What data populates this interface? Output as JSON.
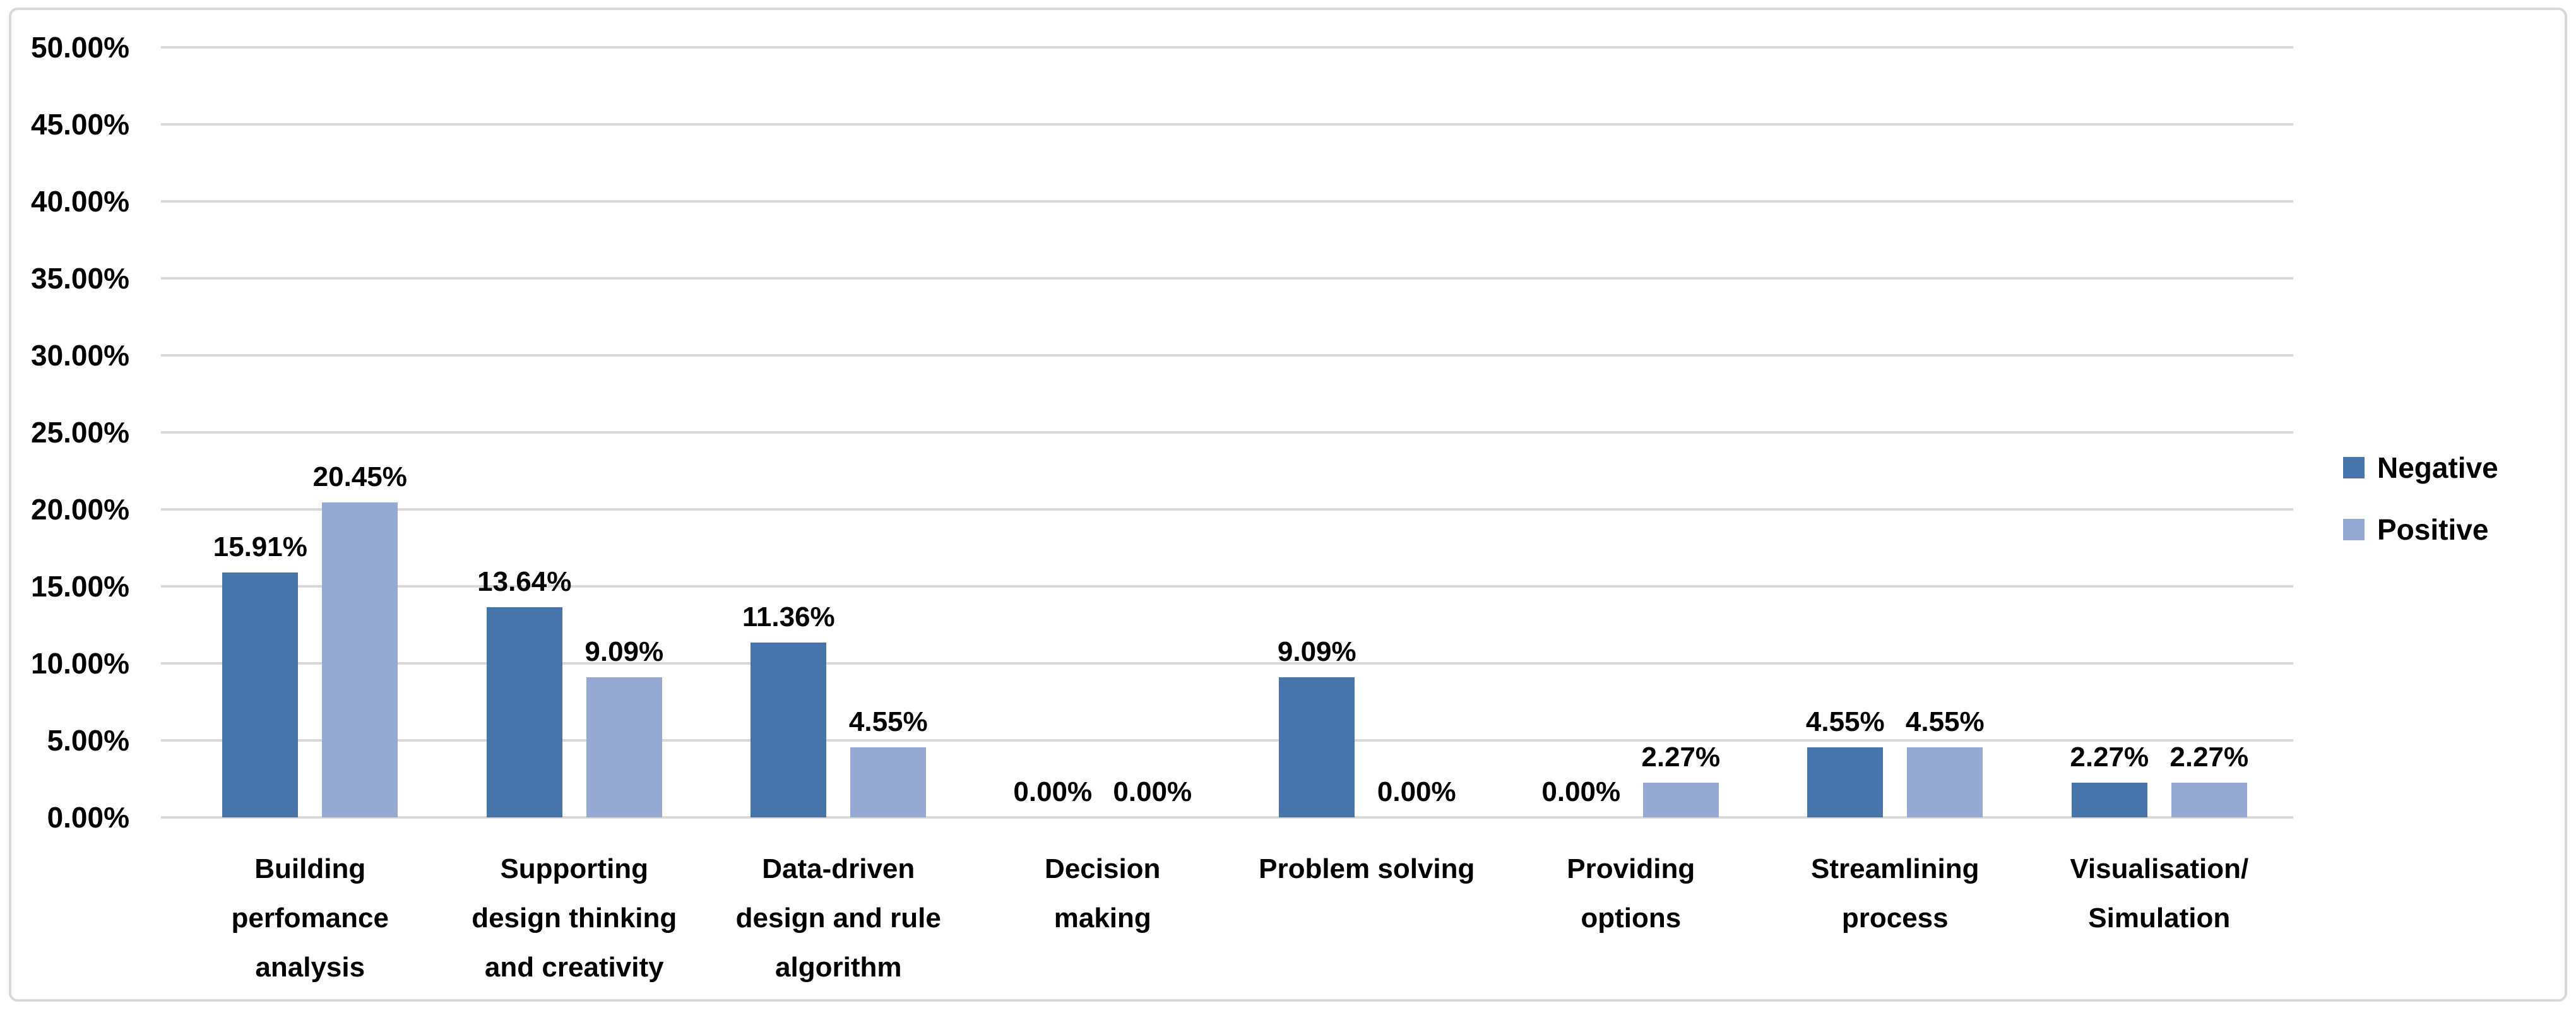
{
  "chart_data": {
    "type": "bar",
    "title": "",
    "xlabel": "",
    "ylabel": "",
    "categories": [
      [
        "Building",
        "perfomance",
        "analysis"
      ],
      [
        "Supporting",
        "design thinking",
        "and creativity"
      ],
      [
        "Data-driven",
        "design and rule",
        "algorithm"
      ],
      [
        "Decision",
        "making"
      ],
      [
        "Problem solving"
      ],
      [
        "Providing",
        "options"
      ],
      [
        "Streamlining",
        "process"
      ],
      [
        "Visualisation/",
        "Simulation"
      ]
    ],
    "series": [
      {
        "name": "Negative",
        "color": "#4674AB",
        "values": [
          15.91,
          13.64,
          11.36,
          0.0,
          9.09,
          0.0,
          4.55,
          2.27
        ],
        "labels": [
          "15.91%",
          "13.64%",
          "11.36%",
          "0.00%",
          "9.09%",
          "0.00%",
          "4.55%",
          "2.27%"
        ]
      },
      {
        "name": "Positive",
        "color": "#95A9D3",
        "values": [
          20.45,
          9.09,
          4.55,
          0.0,
          0.0,
          2.27,
          4.55,
          2.27
        ],
        "labels": [
          "20.45%",
          "9.09%",
          "4.55%",
          "0.00%",
          "0.00%",
          "2.27%",
          "4.55%",
          "2.27%"
        ]
      }
    ],
    "y_axis": {
      "min": 0,
      "max": 50,
      "ticks": [
        "50.00%",
        "45.00%",
        "40.00%",
        "35.00%",
        "30.00%",
        "25.00%",
        "20.00%",
        "15.00%",
        "10.00%",
        "5.00%",
        "0.00%"
      ],
      "grid": true
    },
    "legend": {
      "position": "right",
      "entries": [
        "Negative",
        "Positive"
      ]
    },
    "colors": {
      "gridline": "#D9D9D9",
      "frame_border": "#D9D9D9",
      "text": "#000000"
    }
  }
}
